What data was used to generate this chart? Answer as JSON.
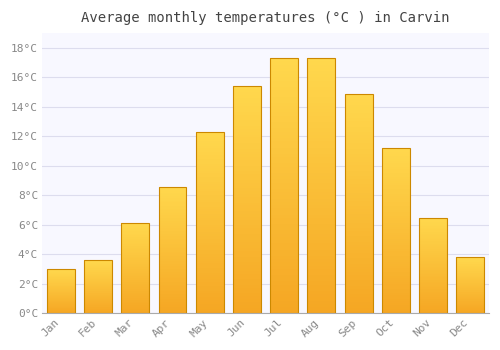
{
  "title": "Average monthly temperatures (°C ) in Carvin",
  "months": [
    "Jan",
    "Feb",
    "Mar",
    "Apr",
    "May",
    "Jun",
    "Jul",
    "Aug",
    "Sep",
    "Oct",
    "Nov",
    "Dec"
  ],
  "temperatures": [
    3.0,
    3.6,
    6.1,
    8.6,
    12.3,
    15.4,
    17.3,
    17.3,
    14.9,
    11.2,
    6.5,
    3.8
  ],
  "bar_color_bottom": "#F5A623",
  "bar_color_top": "#FFD84D",
  "bar_edge_color": "#CC8800",
  "ylim": [
    0,
    19
  ],
  "yticks": [
    0,
    2,
    4,
    6,
    8,
    10,
    12,
    14,
    16,
    18
  ],
  "ytick_labels": [
    "0°C",
    "2°C",
    "4°C",
    "6°C",
    "8°C",
    "10°C",
    "12°C",
    "14°C",
    "16°C",
    "18°C"
  ],
  "background_color": "#ffffff",
  "plot_bg_color": "#f8f8ff",
  "grid_color": "#ddddee",
  "title_fontsize": 10,
  "tick_fontsize": 8,
  "tick_color": "#888888",
  "figsize": [
    5.0,
    3.5
  ],
  "dpi": 100,
  "bar_width": 0.75
}
